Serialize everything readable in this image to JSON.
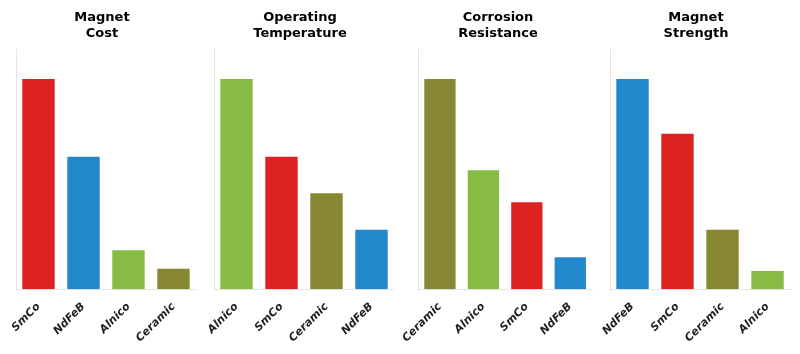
{
  "chart_data": [
    {
      "type": "bar",
      "title": "Magnet\nCost",
      "categories": [
        "SmCo",
        "NdFeB",
        "Alnico",
        "Ceramic"
      ],
      "values": [
        92,
        58,
        17,
        9
      ],
      "colors": [
        "#dd2222",
        "#2288cc",
        "#88bb44",
        "#888833"
      ],
      "ylim": [
        0,
        105
      ],
      "grid": false,
      "tick_labels": "x"
    },
    {
      "type": "bar",
      "title": "Operating\nTemperature",
      "categories": [
        "Alnico",
        "SmCo",
        "Ceramic",
        "NdFeB"
      ],
      "values": [
        92,
        58,
        42,
        26
      ],
      "colors": [
        "#88bb44",
        "#dd2222",
        "#888833",
        "#2288cc"
      ],
      "ylim": [
        0,
        105
      ],
      "grid": false,
      "tick_labels": "x"
    },
    {
      "type": "bar",
      "title": "Corrosion\nResistance",
      "categories": [
        "Ceramic",
        "Alnico",
        "SmCo",
        "NdFeB"
      ],
      "values": [
        92,
        52,
        38,
        14
      ],
      "colors": [
        "#888833",
        "#88bb44",
        "#dd2222",
        "#2288cc"
      ],
      "ylim": [
        0,
        105
      ],
      "grid": false,
      "tick_labels": "x"
    },
    {
      "type": "bar",
      "title": "Magnet\nStrength",
      "categories": [
        "NdFeB",
        "SmCo",
        "Ceramic",
        "Alnico"
      ],
      "values": [
        92,
        68,
        26,
        8
      ],
      "colors": [
        "#2288cc",
        "#dd2222",
        "#888833",
        "#88bb44"
      ],
      "ylim": [
        0,
        105
      ],
      "grid": false,
      "tick_labels": "x"
    }
  ]
}
